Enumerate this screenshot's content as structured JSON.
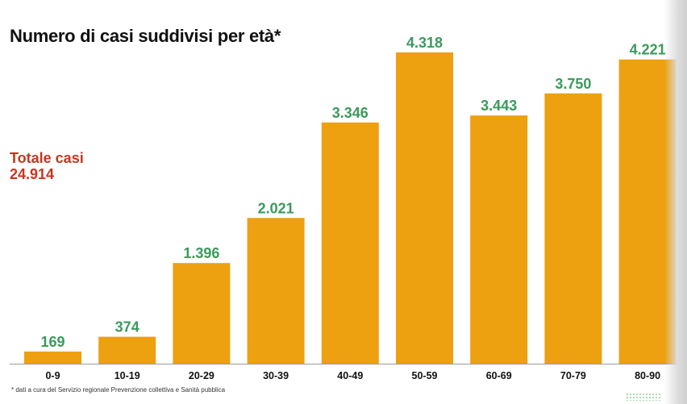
{
  "header": {
    "title": "Numero di casi suddivisi per età*"
  },
  "summary": {
    "total_label": "Totale casi",
    "total_value": "24.914"
  },
  "footnote": "* dati a cura del Servizio regionale Prevenzione collettiva e Sanità pubblica",
  "colors": {
    "bar": "#eda010",
    "value_label": "#3a9a5b",
    "total": "#c8351f",
    "axis_label": "#111111"
  },
  "chart_data": {
    "type": "bar",
    "title": "Numero di casi suddivisi per età*",
    "categories": [
      "0-9",
      "10-19",
      "20-29",
      "30-39",
      "40-49",
      "50-59",
      "60-69",
      "70-79",
      "80-90"
    ],
    "values": [
      169,
      374,
      1396,
      2021,
      3346,
      4318,
      3443,
      3750,
      4221
    ],
    "value_labels": [
      "169",
      "374",
      "1.396",
      "2.021",
      "3.346",
      "4.318",
      "3.443",
      "3.750",
      "4.221"
    ],
    "xlabel": "",
    "ylabel": "",
    "ylim": [
      0,
      4318
    ],
    "grid": false,
    "legend": "none"
  }
}
